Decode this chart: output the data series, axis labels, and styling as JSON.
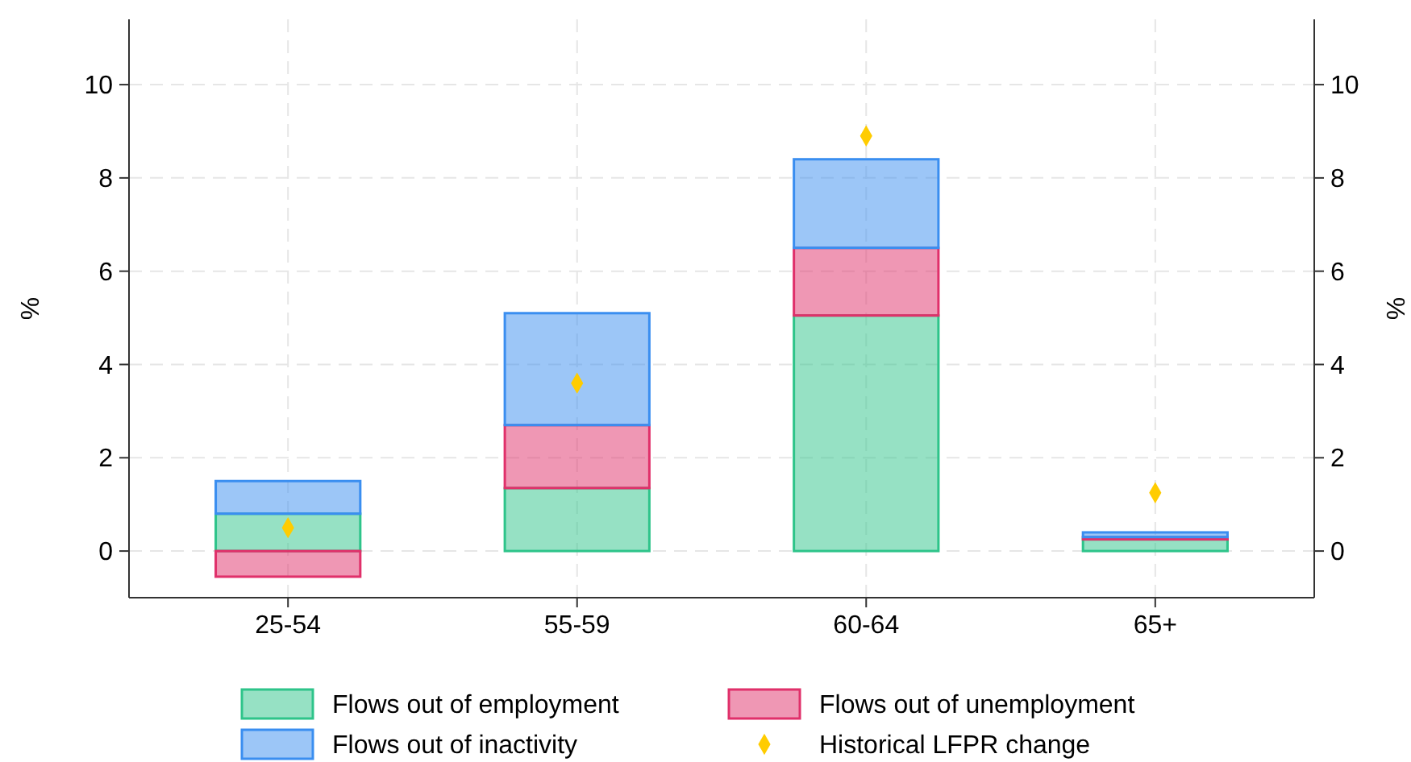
{
  "chart_data": {
    "type": "bar",
    "stacked": true,
    "ylabel": "%",
    "y2label": "%",
    "categories": [
      "25-54",
      "55-59",
      "60-64",
      "65+"
    ],
    "ylim": [
      -1,
      11.4
    ],
    "yticks": [
      0,
      2,
      4,
      6,
      8,
      10
    ],
    "y2lim": [
      -1,
      11.4
    ],
    "y2ticks": [
      0,
      2,
      4,
      6,
      8,
      10
    ],
    "grid": true,
    "legend": "bottom",
    "series": [
      {
        "name": "Flows out of employment",
        "color": "#2ec48a",
        "values": [
          0.8,
          1.35,
          5.05,
          0.25
        ]
      },
      {
        "name": "Flows out of unemployment",
        "color": "#e0306a",
        "values": [
          -0.55,
          1.35,
          1.45,
          0.05
        ]
      },
      {
        "name": "Flows out of inactivity",
        "color": "#3a8ef0",
        "values": [
          0.7,
          2.4,
          1.9,
          0.1
        ]
      },
      {
        "name": "Historical LFPR change",
        "type": "scatter",
        "marker": "diamond",
        "color": "#ffcc00",
        "x": [
          "25-54",
          "55-59",
          "60-64",
          "65+"
        ],
        "values": [
          0.5,
          3.6,
          8.9,
          1.25
        ]
      }
    ]
  }
}
